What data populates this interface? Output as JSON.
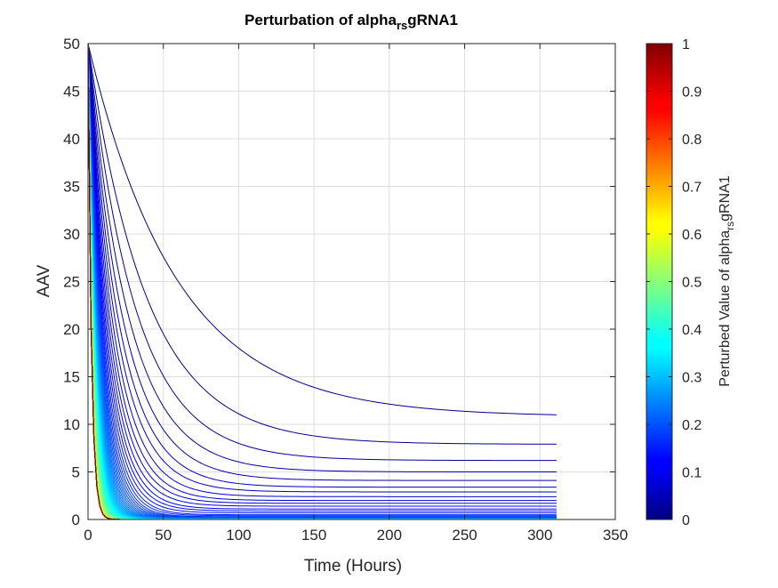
{
  "chart_data": {
    "type": "line",
    "title": {
      "prefix": "Perturbation of alpha",
      "subscript": "rs",
      "suffix": "gRNA1"
    },
    "xlabel": "Time (Hours)",
    "ylabel": "AAV",
    "xlim": [
      0,
      350
    ],
    "ylim": [
      0,
      50
    ],
    "xticks": [
      0,
      50,
      100,
      150,
      200,
      250,
      300,
      350
    ],
    "yticks": [
      0,
      5,
      10,
      15,
      20,
      25,
      30,
      35,
      40,
      45,
      50
    ],
    "grid": true,
    "colormap": "jet",
    "series_summary": {
      "count": 100,
      "start_value": 50,
      "t_end": 311,
      "perturbed_value_range": [
        0.01,
        1
      ],
      "final_values_lowest_alpha": [
        10.8,
        7.9,
        6.2,
        5.0,
        4.1,
        3.4,
        2.9,
        2.4,
        2.0,
        1.7,
        1.4,
        1.1,
        0.9,
        0.7,
        0.5,
        0.4,
        0.3
      ],
      "final_value_high_alpha": 0
    },
    "colorbar": {
      "label": {
        "prefix": "Perturbed Value of alpha",
        "subscript": "rs",
        "suffix": "gRNA1"
      },
      "range": [
        0,
        1
      ],
      "ticks": [
        "0",
        "0.1",
        "0.2",
        "0.3",
        "0.4",
        "0.5",
        "0.6",
        "0.7",
        "0.8",
        "0.9",
        "1"
      ]
    }
  }
}
